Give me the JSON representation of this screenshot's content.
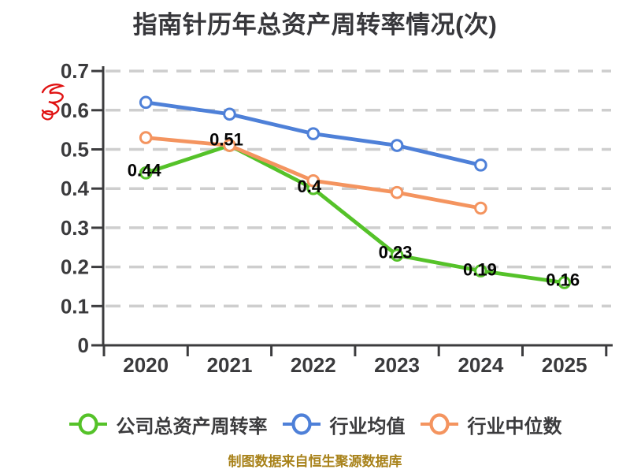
{
  "title": {
    "text": "指南针历年总资产周转率情况(次)"
  },
  "chart_data": {
    "type": "line",
    "title": "指南针历年总资产周转率情况(次)",
    "categories": [
      "2020",
      "2021",
      "2022",
      "2023",
      "2024",
      "2025"
    ],
    "series": [
      {
        "name": "公司总资产周转率",
        "color": "#55c229",
        "values": [
          0.44,
          0.51,
          0.4,
          0.23,
          0.19,
          0.16
        ],
        "labels": [
          "0.44",
          "0.51",
          "0.4",
          "0.23",
          "0.19",
          "0.16"
        ]
      },
      {
        "name": "行业均值",
        "color": "#4e80d8",
        "values": [
          0.62,
          0.59,
          0.54,
          0.51,
          0.46,
          null
        ],
        "labels": null
      },
      {
        "name": "行业中位数",
        "color": "#f4945f",
        "values": [
          0.53,
          0.51,
          0.42,
          0.39,
          0.35,
          null
        ],
        "labels": null
      }
    ],
    "xlabel": "",
    "ylabel": "",
    "ylim": [
      0,
      0.7
    ],
    "ytick_step": 0.1,
    "yticks": [
      "0",
      "0.1",
      "0.2",
      "0.3",
      "0.4",
      "0.5",
      "0.6",
      "0.7"
    ],
    "grid": "horizontal dashed",
    "legend_position": "bottom",
    "marker_style": "circle white fill, colored ring"
  },
  "annotation": {
    "red_scribble": {
      "color": "#e01212",
      "location": "left of y-axis between 0.6 and 0.7"
    }
  },
  "footer": {
    "text": "制图数据来自恒生聚源数据库",
    "color": "#a8821a"
  },
  "style_colors": {
    "axis": "#3c3c3e",
    "grid": "#cecece",
    "tick_label": "#3a3a3c",
    "data_label": "#050505",
    "title": "#37373b",
    "legend_text": "#3b3b3d",
    "background": "#ffffff"
  }
}
